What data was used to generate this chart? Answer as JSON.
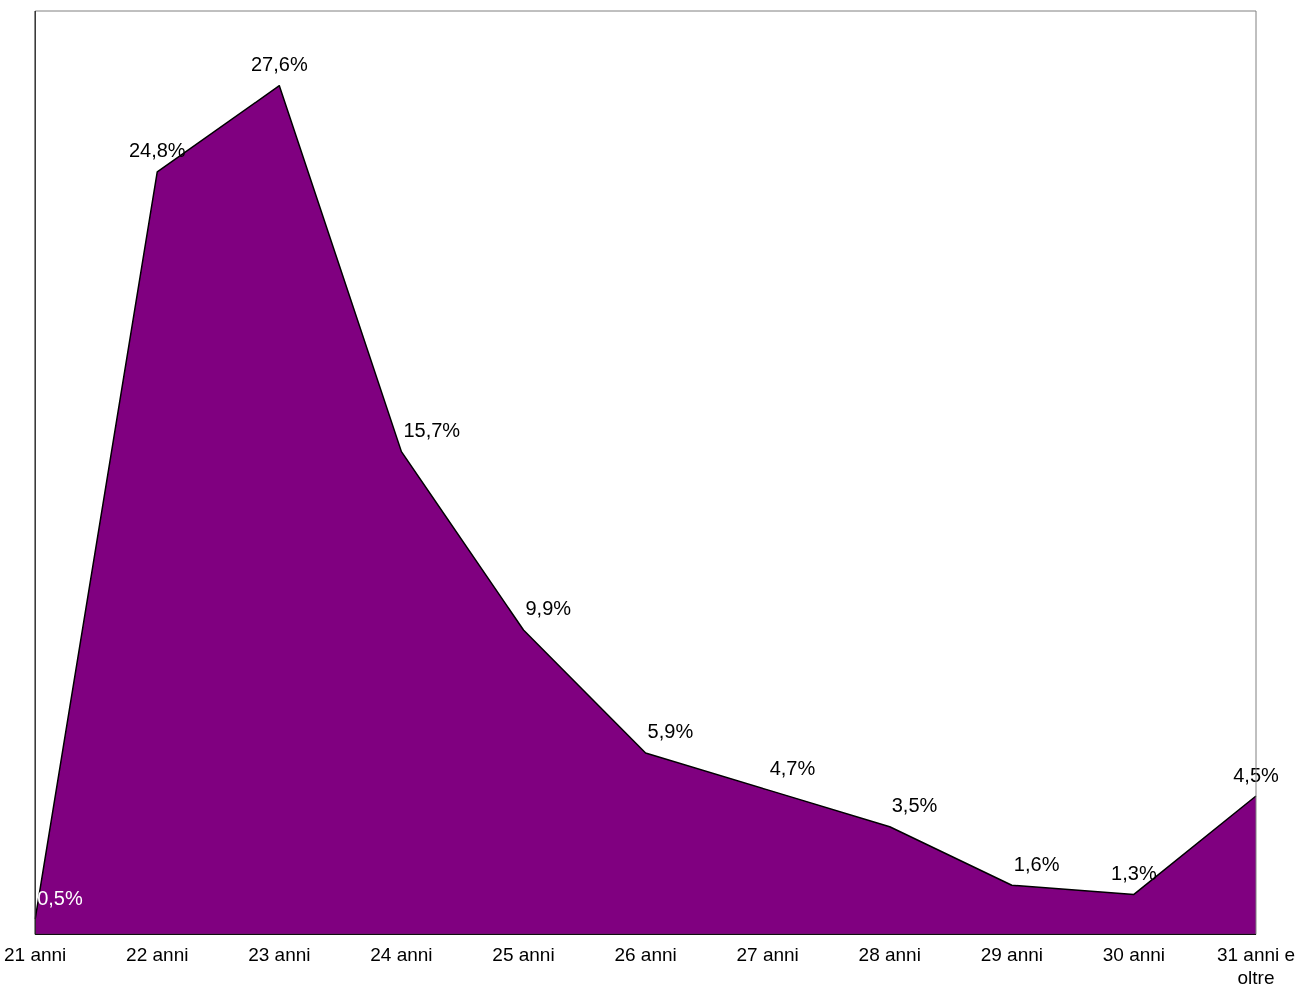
{
  "chart_data": {
    "type": "area",
    "categories": [
      "21 anni",
      "22 anni",
      "23 anni",
      "24 anni",
      "25 anni",
      "26 anni",
      "27 anni",
      "28 anni",
      "29 anni",
      "30 anni",
      "31 anni e oltre"
    ],
    "values": [
      0.5,
      24.8,
      27.6,
      15.7,
      9.9,
      5.9,
      4.7,
      3.5,
      1.6,
      1.3,
      4.5
    ],
    "value_labels": [
      "0,5%",
      "24,8%",
      "27,6%",
      "15,7%",
      "9,9%",
      "5,9%",
      "4,7%",
      "3,5%",
      "1,6%",
      "1,3%",
      "4,5%"
    ],
    "color": "#800080",
    "grid": false,
    "legend": false
  }
}
